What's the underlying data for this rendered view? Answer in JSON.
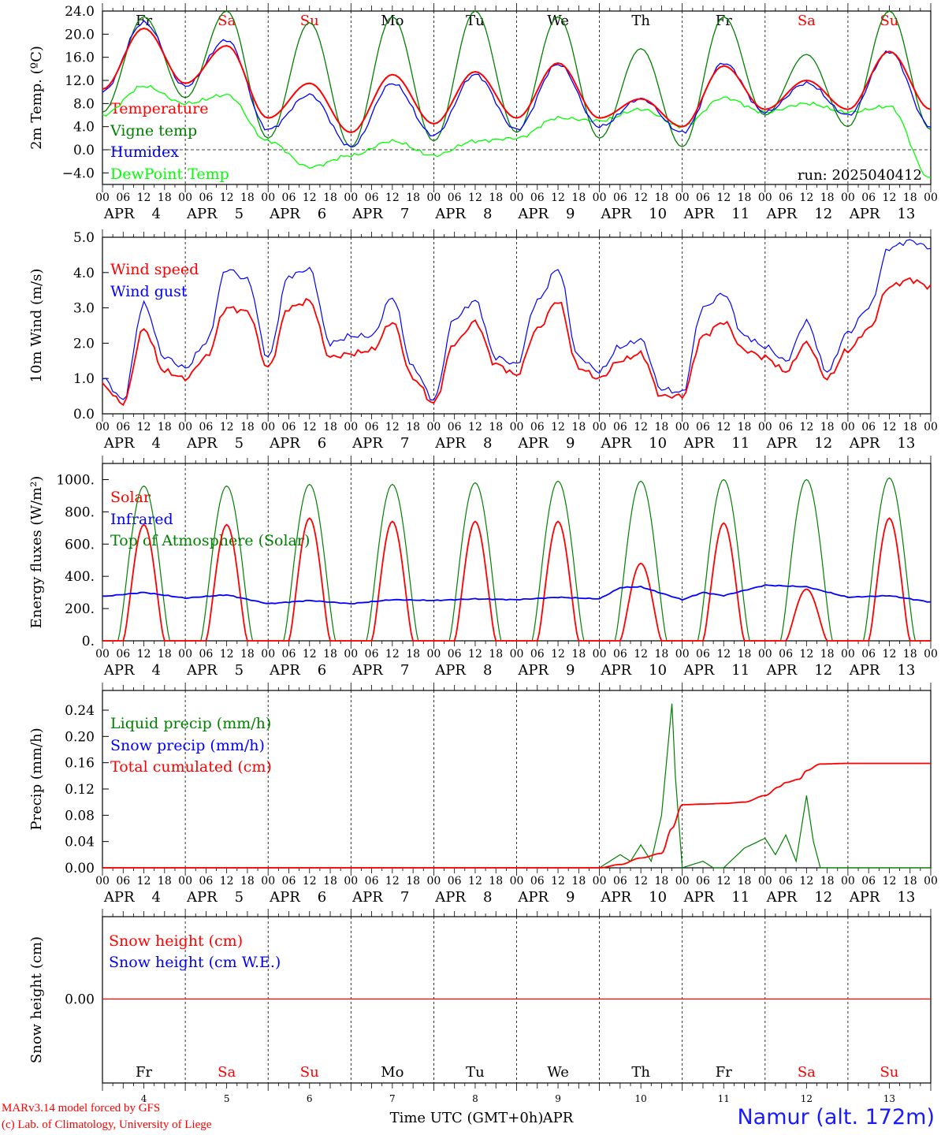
{
  "chart_data": [
    {
      "type": "line",
      "ylabel": "2m Temp. (ºC)",
      "ylim": [
        -6,
        24
      ],
      "yticks": [
        "24.0",
        "20.0",
        "16.0",
        "12.0",
        "8.0",
        "4.0",
        "0.0",
        "−4.0"
      ],
      "run_label": "run: 2025040412",
      "top_day_labels": [
        {
          "text": "Fr",
          "color": "#000000"
        },
        {
          "text": "Sa",
          "color": "#ff0000"
        },
        {
          "text": "Su",
          "color": "#ff0000"
        },
        {
          "text": "Mo",
          "color": "#000000"
        },
        {
          "text": "Tu",
          "color": "#000000"
        },
        {
          "text": "We",
          "color": "#000000"
        },
        {
          "text": "Th",
          "color": "#000000"
        },
        {
          "text": "Fr",
          "color": "#000000"
        },
        {
          "text": "Sa",
          "color": "#ff0000"
        },
        {
          "text": "Su",
          "color": "#ff0000"
        }
      ],
      "series": [
        {
          "name": "Temperature",
          "color": "#ff0000",
          "x": [
            0,
            12,
            24,
            36,
            48,
            60,
            72,
            84,
            96,
            108,
            120,
            132,
            144,
            156,
            168,
            180,
            192,
            204,
            216,
            228,
            240
          ],
          "values": [
            10.5,
            21.0,
            11.5,
            18.0,
            5.5,
            11.5,
            3.0,
            13.0,
            4.5,
            13.5,
            5.5,
            15.0,
            5.5,
            8.8,
            4.0,
            14.5,
            7.0,
            12.0,
            7.0,
            17.0,
            7.0
          ]
        },
        {
          "name": "Vigne temp",
          "color": "#008000",
          "x": [
            0,
            12,
            24,
            36,
            48,
            60,
            72,
            84,
            96,
            108,
            120,
            132,
            144,
            156,
            168,
            180,
            192,
            204,
            216,
            228,
            240
          ],
          "values": [
            6.5,
            23.0,
            9.0,
            24.0,
            2.0,
            22.0,
            0.5,
            23.0,
            1.5,
            24.0,
            3.0,
            23.0,
            2.0,
            17.5,
            0.5,
            23.0,
            6.0,
            16.5,
            4.0,
            24.0,
            3.5
          ]
        },
        {
          "name": "Humidex",
          "color": "#0000ff",
          "x": [
            0,
            12,
            24,
            36,
            48,
            60,
            72,
            84,
            96,
            108,
            120,
            132,
            144,
            156,
            168,
            180,
            192,
            204,
            216,
            228,
            240
          ],
          "values": [
            10.0,
            22.0,
            11.0,
            19.0,
            3.5,
            9.5,
            0.5,
            11.5,
            2.5,
            13.0,
            3.5,
            14.8,
            4.0,
            8.8,
            3.0,
            15.0,
            6.5,
            11.5,
            6.0,
            17.0,
            4.0
          ]
        },
        {
          "name": "DewPoint Temp",
          "color": "#00ff00",
          "x": [
            0,
            12,
            24,
            36,
            48,
            60,
            72,
            84,
            96,
            108,
            120,
            132,
            144,
            156,
            168,
            180,
            192,
            204,
            216,
            228,
            240
          ],
          "values": [
            6.0,
            11.0,
            8.0,
            9.5,
            1.5,
            -3.0,
            -1.0,
            1.5,
            -1.0,
            1.5,
            2.0,
            5.5,
            5.0,
            7.0,
            4.0,
            9.0,
            6.5,
            8.0,
            6.5,
            7.5,
            -5.0
          ]
        }
      ]
    },
    {
      "type": "line",
      "ylabel": "10m Wind (m/s)",
      "ylim": [
        0,
        5
      ],
      "yticks": [
        "5.0",
        "4.0",
        "3.0",
        "2.0",
        "1.0",
        "0.0"
      ],
      "series": [
        {
          "name": "Wind speed",
          "color": "#ff0000",
          "x": [
            0,
            6,
            12,
            18,
            24,
            30,
            36,
            42,
            48,
            54,
            60,
            66,
            72,
            78,
            84,
            90,
            96,
            102,
            108,
            114,
            120,
            126,
            132,
            138,
            144,
            150,
            156,
            162,
            168,
            174,
            180,
            186,
            192,
            198,
            204,
            210,
            216,
            222,
            228,
            234,
            240
          ],
          "values": [
            0.8,
            0.3,
            2.4,
            1.2,
            1.0,
            1.6,
            3.0,
            2.9,
            1.3,
            3.0,
            3.2,
            1.6,
            1.7,
            1.8,
            2.6,
            1.0,
            0.3,
            2.0,
            2.6,
            1.4,
            1.1,
            2.4,
            3.2,
            1.3,
            1.0,
            1.5,
            1.7,
            0.5,
            0.5,
            2.2,
            2.6,
            1.8,
            1.6,
            1.2,
            2.0,
            1.0,
            1.8,
            2.4,
            3.6,
            3.8,
            3.6
          ]
        },
        {
          "name": "Wind gust",
          "color": "#0000ff",
          "x": [
            0,
            6,
            12,
            18,
            24,
            30,
            36,
            42,
            48,
            54,
            60,
            66,
            72,
            78,
            84,
            90,
            96,
            102,
            108,
            114,
            120,
            126,
            132,
            138,
            144,
            150,
            156,
            162,
            168,
            174,
            180,
            186,
            192,
            198,
            204,
            210,
            216,
            222,
            228,
            234,
            240
          ],
          "values": [
            1.0,
            0.4,
            3.1,
            1.6,
            1.3,
            2.0,
            4.1,
            3.8,
            1.6,
            3.9,
            4.1,
            2.0,
            2.2,
            2.2,
            3.3,
            1.3,
            0.4,
            2.7,
            3.2,
            1.6,
            1.4,
            3.2,
            4.1,
            1.6,
            1.2,
            1.9,
            2.1,
            0.7,
            0.6,
            3.0,
            3.4,
            2.2,
            1.9,
            1.5,
            2.6,
            1.2,
            2.3,
            3.0,
            4.7,
            4.9,
            4.7
          ]
        }
      ]
    },
    {
      "type": "line",
      "ylabel": "Energy fluxes (W/m²)",
      "ylim": [
        0,
        1100
      ],
      "yticks": [
        "1000.",
        "800.",
        "600.",
        "400.",
        "200.",
        "0."
      ],
      "series": [
        {
          "name": "Solar",
          "color": "#ff0000",
          "peaks": [
            720,
            720,
            760,
            740,
            740,
            740,
            480,
            730,
            320,
            760
          ]
        },
        {
          "name": "Infrared",
          "color": "#0000ff",
          "x": [
            0,
            12,
            24,
            36,
            48,
            60,
            72,
            84,
            96,
            108,
            120,
            132,
            144,
            150,
            156,
            168,
            174,
            180,
            192,
            204,
            216,
            228,
            240
          ],
          "values": [
            275,
            300,
            265,
            285,
            230,
            250,
            230,
            255,
            250,
            260,
            255,
            270,
            260,
            330,
            335,
            255,
            300,
            280,
            345,
            335,
            270,
            280,
            240
          ]
        },
        {
          "name": "Top of Atmosphere (Solar)",
          "color": "#008000",
          "peaks": [
            960,
            960,
            970,
            970,
            980,
            990,
            990,
            1000,
            1000,
            1010
          ]
        }
      ]
    },
    {
      "type": "line",
      "ylabel": "Precip (mm/h)",
      "ylim": [
        0,
        0.27
      ],
      "yticks": [
        "0.24",
        "0.20",
        "0.16",
        "0.12",
        "0.08",
        "0.04",
        "0.00"
      ],
      "series": [
        {
          "name": "Liquid precip (mm/h)",
          "color": "#008000",
          "x": [
            0,
            144,
            150,
            153,
            156,
            159,
            162,
            165,
            166,
            168,
            174,
            177,
            180,
            186,
            192,
            195,
            198,
            201,
            204,
            206,
            208,
            210,
            216,
            240
          ],
          "values": [
            0,
            0,
            0.02,
            0.01,
            0.035,
            0.01,
            0.08,
            0.25,
            0.14,
            0,
            0.01,
            0,
            0,
            0.03,
            0.045,
            0.02,
            0.05,
            0.01,
            0.11,
            0.04,
            0.0,
            0,
            0,
            0
          ]
        },
        {
          "name": "Snow precip (mm/h)",
          "color": "#0000ff",
          "x": [
            0,
            240
          ],
          "values": [
            0,
            0
          ]
        },
        {
          "name": "Total cumulated (cm)",
          "color": "#ff0000",
          "x": [
            0,
            144,
            150,
            156,
            162,
            165,
            168,
            174,
            180,
            186,
            192,
            196,
            198,
            202,
            204,
            208,
            216,
            240
          ],
          "values": [
            0,
            0,
            0.005,
            0.015,
            0.022,
            0.06,
            0.096,
            0.097,
            0.098,
            0.1,
            0.11,
            0.123,
            0.13,
            0.135,
            0.148,
            0.158,
            0.159,
            0.159
          ]
        }
      ]
    },
    {
      "type": "line",
      "ylabel": "Snow height (cm)",
      "yticks": [
        "0.00"
      ],
      "series": [
        {
          "name": "Snow height (cm)",
          "color": "#ff0000",
          "x": [
            0,
            240
          ],
          "values": [
            0,
            0
          ]
        },
        {
          "name": "Snow height (cm W.E.)",
          "color": "#0000ff",
          "x": [
            0,
            240
          ],
          "values": [
            0,
            0
          ]
        }
      ]
    }
  ],
  "x_axis": {
    "hour_labels": [
      "00",
      "06",
      "12",
      "18"
    ],
    "final_hour_label": "00",
    "month": "APR",
    "dates": [
      "4",
      "5",
      "6",
      "7",
      "8",
      "9",
      "10",
      "11",
      "12",
      "13"
    ],
    "bottom_day_labels": [
      {
        "text": "Fr",
        "color": "#000000"
      },
      {
        "text": "Sa",
        "color": "#ff0000"
      },
      {
        "text": "Su",
        "color": "#ff0000"
      },
      {
        "text": "Mo",
        "color": "#000000"
      },
      {
        "text": "Tu",
        "color": "#000000"
      },
      {
        "text": "We",
        "color": "#000000"
      },
      {
        "text": "Th",
        "color": "#000000"
      },
      {
        "text": "Fr",
        "color": "#000000"
      },
      {
        "text": "Sa",
        "color": "#ff0000"
      },
      {
        "text": "Su",
        "color": "#ff0000"
      }
    ],
    "bottom_dates": [
      "4",
      "5",
      "6",
      "7",
      "8",
      "9",
      "10",
      "11",
      "12",
      "13"
    ],
    "title": "Time UTC (GMT+0h)",
    "title_month": "APR"
  },
  "footer": {
    "model": "MARv3.14 model forced by GFS",
    "lab": "(c) Lab. of Climatology, University of Liege",
    "station": "Namur (alt. 172m)"
  }
}
